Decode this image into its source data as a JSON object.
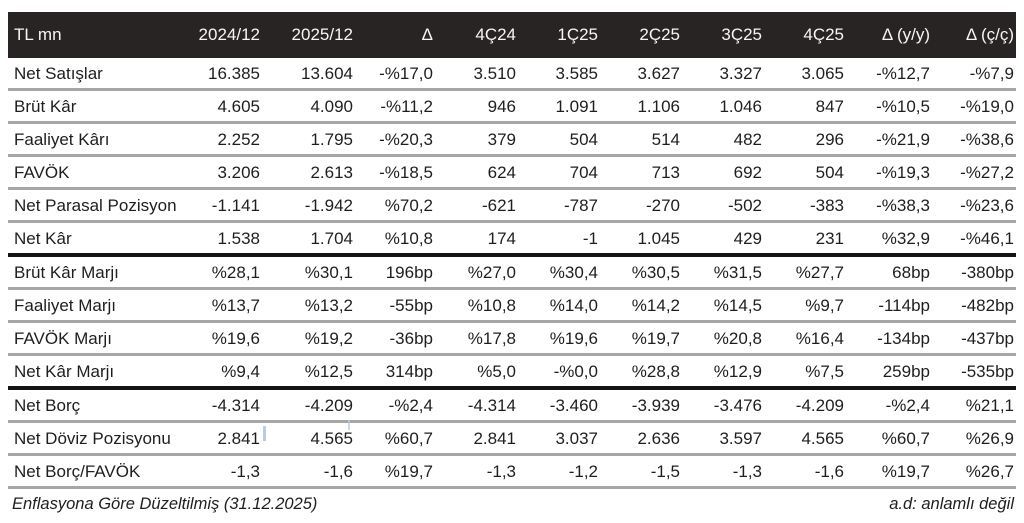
{
  "table": {
    "unit_label": "TL mn",
    "header": [
      "TL mn",
      "2024/12",
      "2025/12",
      "Δ",
      "4Ç24",
      "1Ç25",
      "2Ç25",
      "3Ç25",
      "4Ç25",
      "Δ (y/y)",
      "Δ (ç/ç)"
    ],
    "rows": [
      {
        "label": "Net Satışlar",
        "values": [
          "16.385",
          "13.604",
          "-%17,0",
          "3.510",
          "3.585",
          "3.627",
          "3.327",
          "3.065",
          "-%12,7",
          "-%7,9"
        ]
      },
      {
        "label": "Brüt Kâr",
        "values": [
          "4.605",
          "4.090",
          "-%11,2",
          "946",
          "1.091",
          "1.106",
          "1.046",
          "847",
          "-%10,5",
          "-%19,0"
        ]
      },
      {
        "label": "Faaliyet Kârı",
        "values": [
          "2.252",
          "1.795",
          "-%20,3",
          "379",
          "504",
          "514",
          "482",
          "296",
          "-%21,9",
          "-%38,6"
        ]
      },
      {
        "label": "FAVÖK",
        "values": [
          "3.206",
          "2.613",
          "-%18,5",
          "624",
          "704",
          "713",
          "692",
          "504",
          "-%19,3",
          "-%27,2"
        ]
      },
      {
        "label": "Net Parasal Pozisyon",
        "values": [
          "-1.141",
          "-1.942",
          "%70,2",
          "-621",
          "-787",
          "-270",
          "-502",
          "-383",
          "-%38,3",
          "-%23,6"
        ]
      },
      {
        "label": "Net Kâr",
        "values": [
          "1.538",
          "1.704",
          "%10,8",
          "174",
          "-1",
          "1.045",
          "429",
          "231",
          "%32,9",
          "-%46,1"
        ]
      },
      {
        "label": "Brüt Kâr Marjı",
        "values": [
          "%28,1",
          "%30,1",
          "196bp",
          "%27,0",
          "%30,4",
          "%30,5",
          "%31,5",
          "%27,7",
          "68bp",
          "-380bp"
        ]
      },
      {
        "label": "Faaliyet Marjı",
        "values": [
          "%13,7",
          "%13,2",
          "-55bp",
          "%10,8",
          "%14,0",
          "%14,2",
          "%14,5",
          "%9,7",
          "-114bp",
          "-482bp"
        ]
      },
      {
        "label": "FAVÖK Marjı",
        "values": [
          "%19,6",
          "%19,2",
          "-36bp",
          "%17,8",
          "%19,6",
          "%19,7",
          "%20,8",
          "%16,4",
          "-134bp",
          "-437bp"
        ]
      },
      {
        "label": "Net Kâr Marjı",
        "values": [
          "%9,4",
          "%12,5",
          "314bp",
          "%5,0",
          "-%0,0",
          "%28,8",
          "%12,9",
          "%7,5",
          "259bp",
          "-535bp"
        ]
      },
      {
        "label": "Net Borç",
        "values": [
          "-4.314",
          "-4.209",
          "-%2,4",
          "-4.314",
          "-3.460",
          "-3.939",
          "-3.476",
          "-4.209",
          "-%2,4",
          "%21,1"
        ]
      },
      {
        "label": "Net Döviz Pozisyonu",
        "values": [
          "2.841",
          "4.565",
          "%60,7",
          "2.841",
          "3.037",
          "2.636",
          "3.597",
          "4.565",
          "%60,7",
          "%26,9"
        ]
      },
      {
        "label": "Net Borç/FAVÖK",
        "values": [
          "-1,3",
          "-1,6",
          "%19,7",
          "-1,3",
          "-1,2",
          "-1,5",
          "-1,3",
          "-1,6",
          "%19,7",
          "%26,7"
        ]
      }
    ],
    "section_divider_rows": [
      6,
      10
    ]
  },
  "footer": {
    "left": "Enflasyona Göre Düzeltilmiş (31.12.2025)",
    "right": "a.d: anlamlı değil"
  },
  "colors": {
    "header_bg": "#292424",
    "header_text": "#f7f6f4",
    "body_text": "#201d1d",
    "separator_gray": "#a6a6a6",
    "separator_black": "#161313",
    "cursor_artifact_blue": "#b6cde5"
  }
}
